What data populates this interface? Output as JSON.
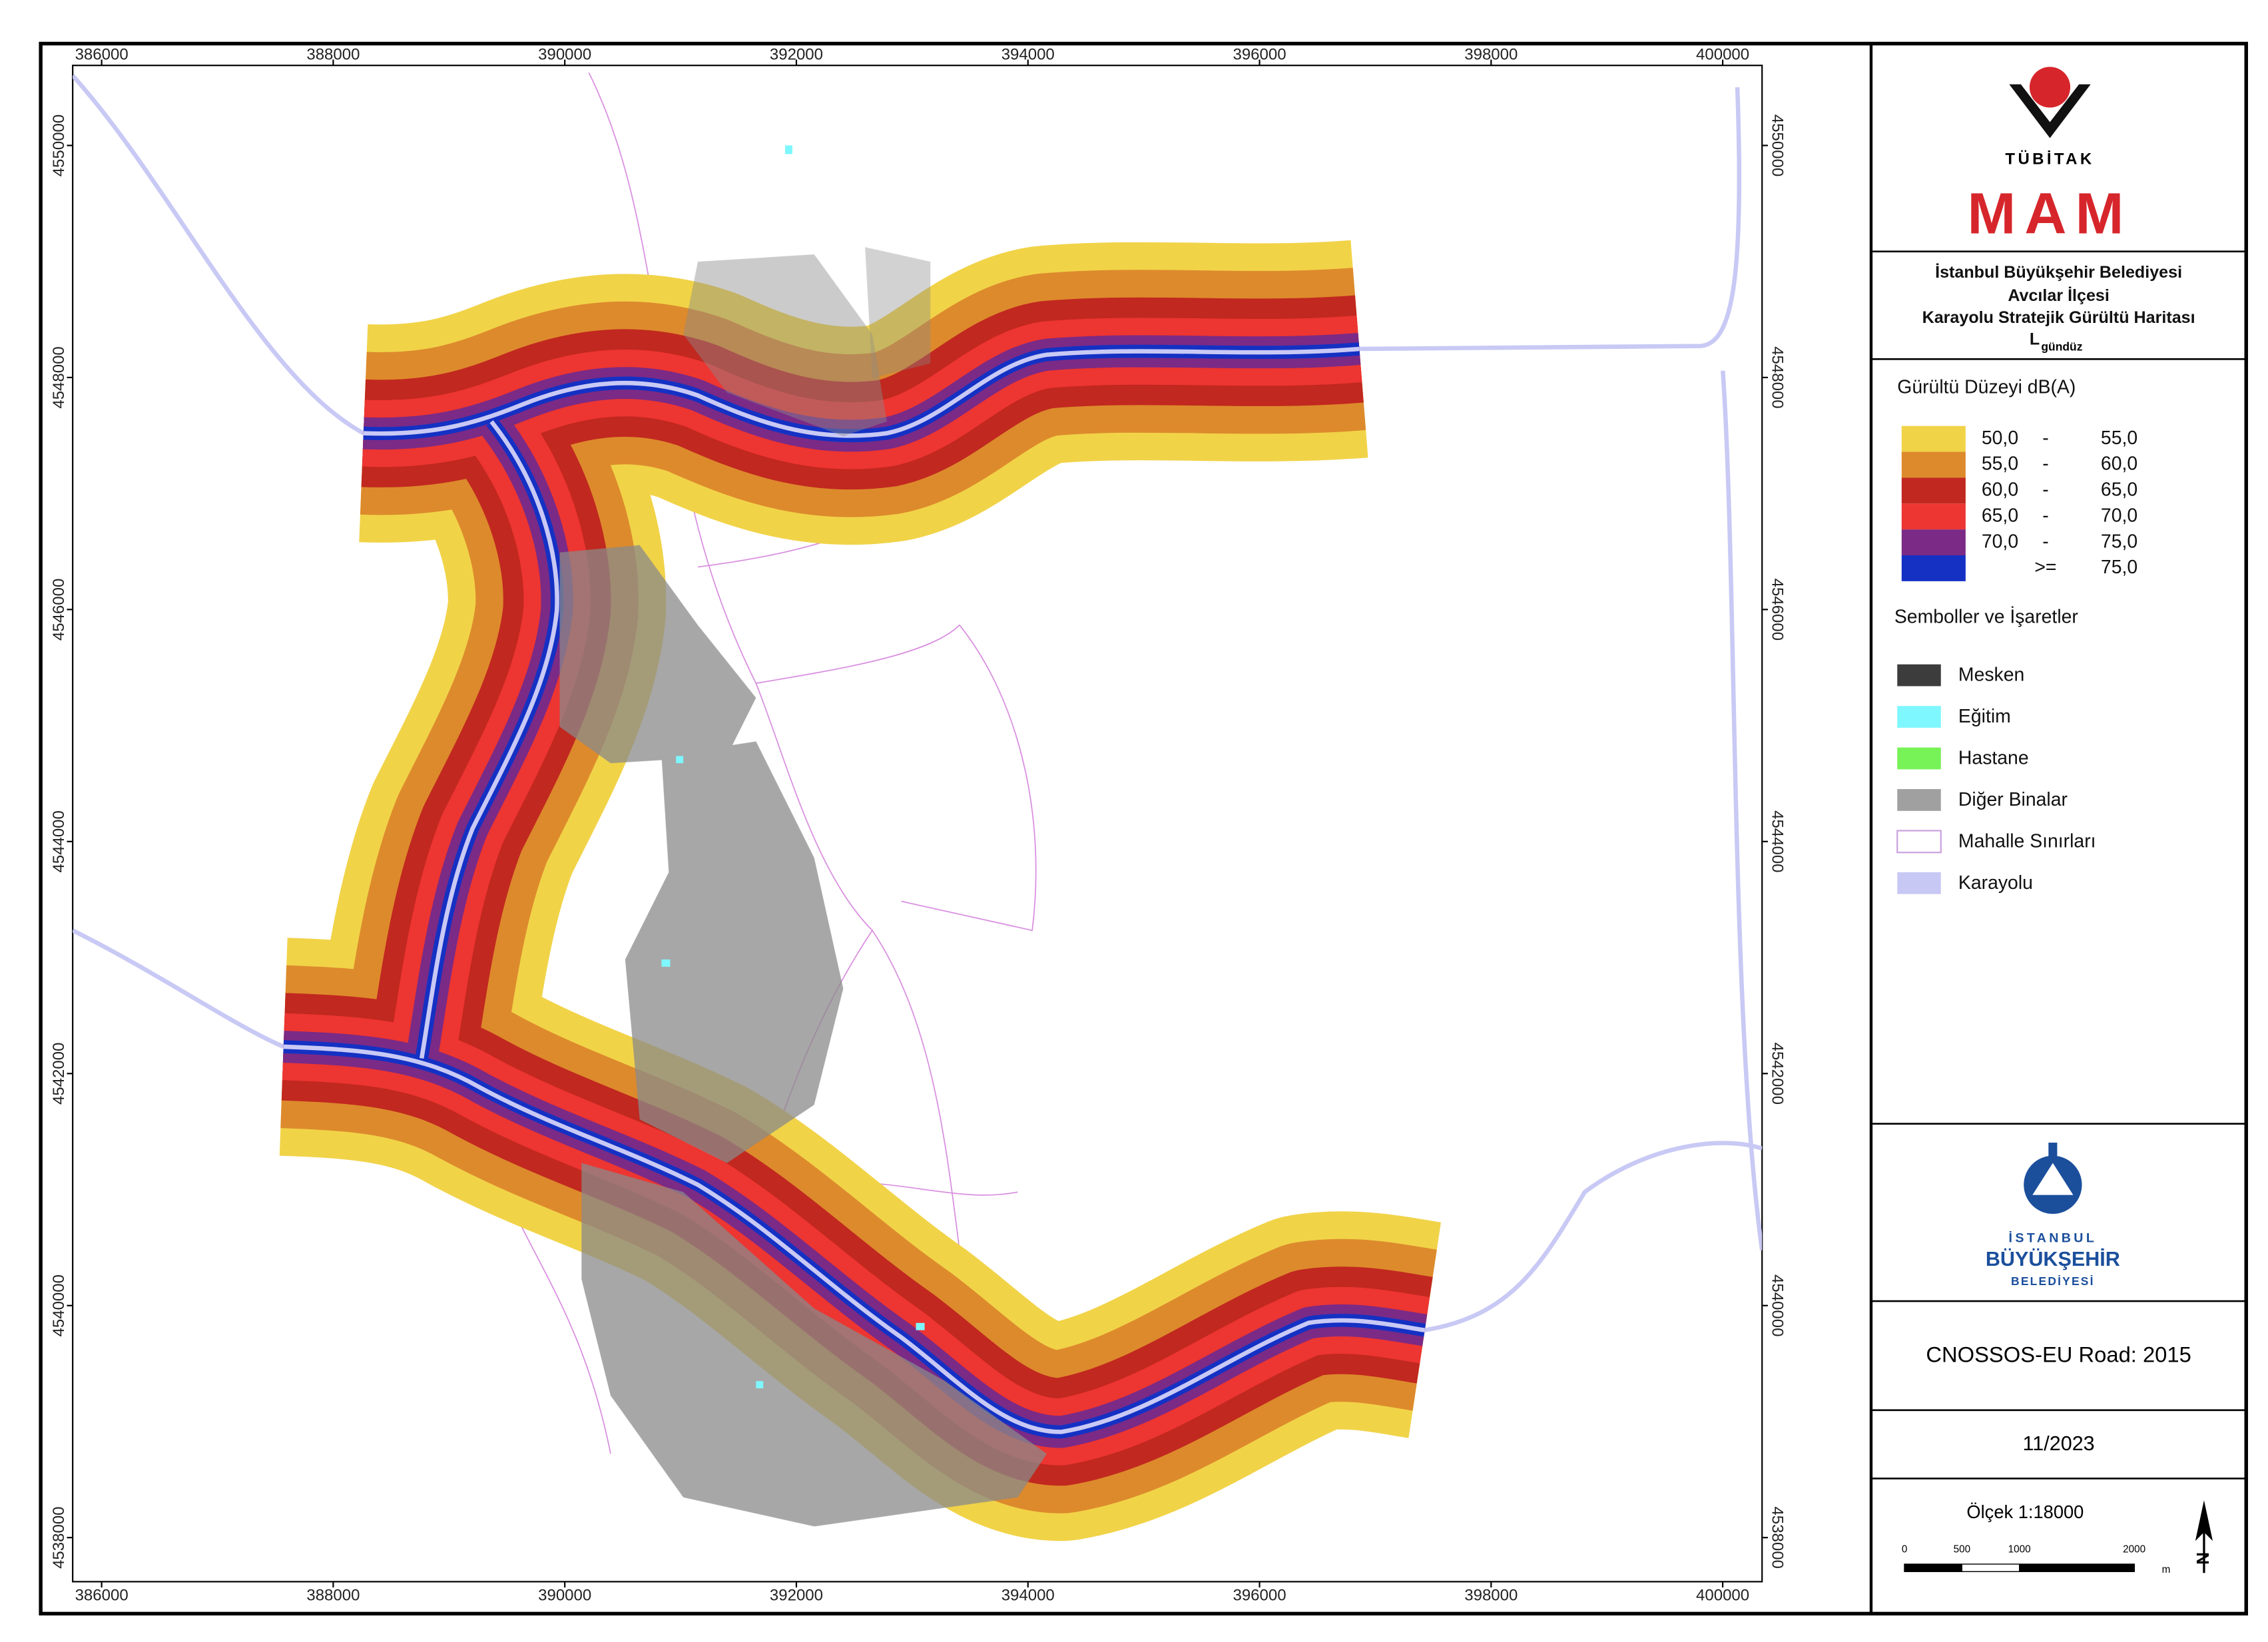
{
  "map": {
    "xlim": [
      385750,
      400340
    ],
    "ylim": [
      4537620,
      4550690
    ],
    "xticks": [
      386000,
      388000,
      390000,
      392000,
      394000,
      396000,
      398000,
      400000
    ],
    "yticks": [
      4538000,
      4540000,
      4542000,
      4544000,
      4546000,
      4548000,
      4550000
    ]
  },
  "header": {
    "tubitak": "TÜBİTAK",
    "mam": "MAM"
  },
  "title": {
    "lines": [
      "İstanbul Büyükşehir Belediyesi",
      "Avcılar İlçesi",
      "Karayolu Stratejik Gürültü Haritası"
    ],
    "indicator": "L",
    "indicator_sub": "gündüz"
  },
  "legend": {
    "title": "Gürültü Düzeyi dB(A)",
    "levels": [
      {
        "low": "50,0",
        "sep": "-",
        "high": "55,0",
        "color": "#f1d348"
      },
      {
        "low": "55,0",
        "sep": "-",
        "high": "60,0",
        "color": "#dd8a2c"
      },
      {
        "low": "60,0",
        "sep": "-",
        "high": "65,0",
        "color": "#c1281f"
      },
      {
        "low": "65,0",
        "sep": "-",
        "high": "70,0",
        "color": "#ed3531"
      },
      {
        "low": "70,0",
        "sep": "-",
        "high": "75,0",
        "color": "#7b2a86"
      },
      {
        "sep": ">=",
        "high": "75,0",
        "color": "#1431c4"
      }
    ]
  },
  "symbols": {
    "title": "Semboller ve İşaretler",
    "items": [
      {
        "label": "Mesken",
        "color": "#3c3c3c"
      },
      {
        "label": "Eğitim",
        "color": "#7ff7ff"
      },
      {
        "label": "Hastane",
        "color": "#77f257"
      },
      {
        "label": "Diğer Binalar",
        "color": "#a0a0a0"
      },
      {
        "label": "Mahalle Sınırları",
        "color": "#ffffff"
      },
      {
        "label": "Karayolu",
        "color": "#c8c8f5"
      }
    ]
  },
  "ibb": {
    "line1": "İSTANBUL",
    "line2": "BÜYÜKŞEHİR",
    "line3": "BELEDİYESİ"
  },
  "model": "CNOSSOS-EU Road: 2015",
  "date": "11/2023",
  "scale": {
    "label": "Ölçek 1:18000",
    "ticks": [
      0,
      500,
      1000,
      2000
    ],
    "unit": "m"
  },
  "north": "N"
}
